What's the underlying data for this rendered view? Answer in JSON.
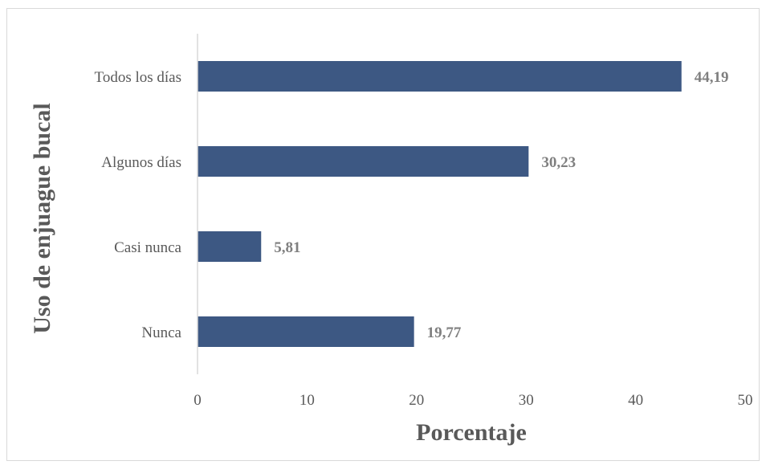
{
  "chart_data": {
    "type": "bar",
    "orientation": "horizontal",
    "categories": [
      "Todos los días",
      "Algunos días",
      "Casi nunca",
      "Nunca"
    ],
    "values": [
      44.19,
      30.23,
      5.81,
      19.77
    ],
    "data_labels": [
      "44,19",
      "30,23",
      "5,81",
      "19,77"
    ],
    "xlabel": "Porcentaje",
    "ylabel": "Uso de enjuague bucal",
    "xlim": [
      0,
      50
    ],
    "xticks": [
      "0",
      "10",
      "20",
      "30",
      "40",
      "50"
    ],
    "grid": false,
    "legend": "none",
    "bar_color": "#3d5883"
  }
}
